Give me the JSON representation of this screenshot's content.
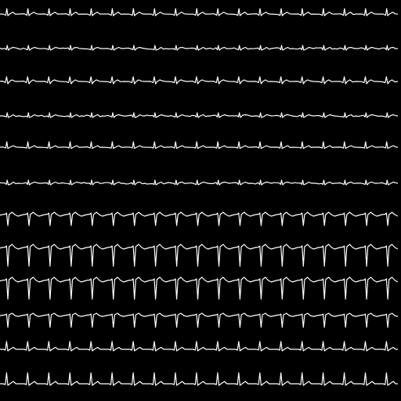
{
  "colors": {
    "background": "#000000",
    "trace": "#ffffff"
  },
  "beats_per_lead": 19,
  "leads": [
    {
      "id": "lead-1",
      "morphology": "spiky-upward"
    },
    {
      "id": "lead-2",
      "morphology": "low-amplitude-noisy"
    },
    {
      "id": "lead-3",
      "morphology": "small-biphasic"
    },
    {
      "id": "lead-4",
      "morphology": "low-amplitude-noisy"
    },
    {
      "id": "lead-5",
      "morphology": "small-upward"
    },
    {
      "id": "lead-6",
      "morphology": "low-amplitude-noisy"
    },
    {
      "id": "lead-7",
      "morphology": "downward-qrs-with-t"
    },
    {
      "id": "lead-8",
      "morphology": "deep-downward-qrs"
    },
    {
      "id": "lead-9",
      "morphology": "deep-downward-qrs"
    },
    {
      "id": "lead-10",
      "morphology": "medium-downward-qrs"
    },
    {
      "id": "lead-11",
      "morphology": "upward-spike"
    },
    {
      "id": "lead-12",
      "morphology": "upward-spike-tall"
    }
  ]
}
